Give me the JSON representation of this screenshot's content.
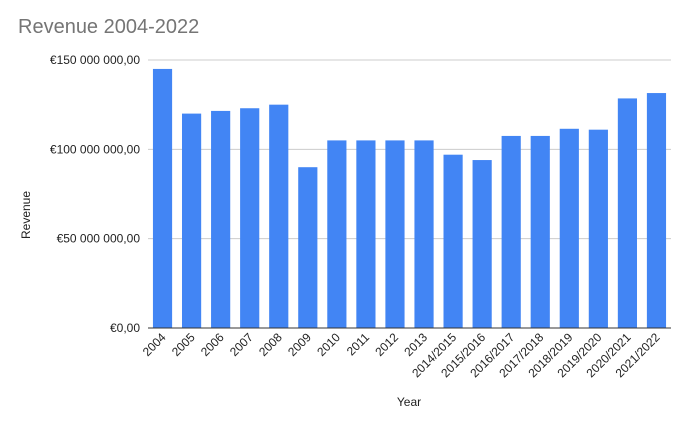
{
  "chart_data": {
    "type": "bar",
    "title": "Revenue 2004-2022",
    "xlabel": "Year",
    "ylabel": "Revenue",
    "categories": [
      "2004",
      "2005",
      "2006",
      "2007",
      "2008",
      "2009",
      "2010",
      "2011",
      "2012",
      "2013",
      "2014/2015",
      "2015/2016",
      "2016/2017",
      "2017/2018",
      "2018/2019",
      "2019/2020",
      "2020/2021",
      "2021/2022"
    ],
    "values": [
      145000000,
      120000000,
      121500000,
      123000000,
      125000000,
      90000000,
      105000000,
      105000000,
      105000000,
      105000000,
      97000000,
      94000000,
      107500000,
      107500000,
      111500000,
      111000000,
      128500000,
      131500000
    ],
    "ylim": [
      0,
      150000000
    ],
    "yticks": [
      0,
      50000000,
      100000000,
      150000000
    ],
    "ytick_labels": [
      "€0,00",
      "€50 000 000,00",
      "€100 000 000,00",
      "€150 000 000,00"
    ],
    "grid": true,
    "legend": "none",
    "bar_color": "#4285f4"
  }
}
